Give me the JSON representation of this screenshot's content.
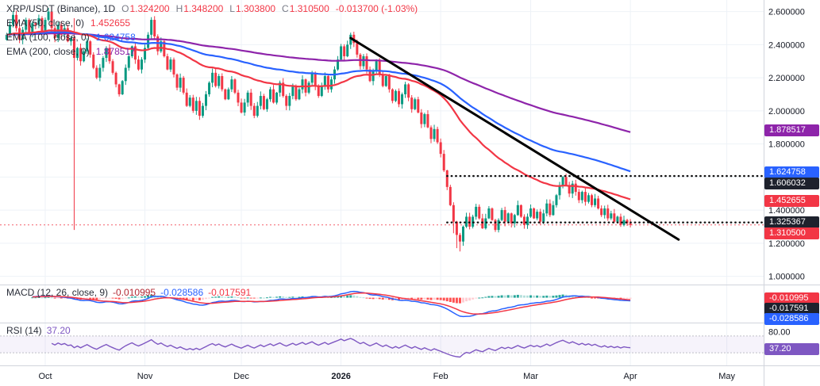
{
  "header": {
    "symbol": "XRP/USDT (Binance), 1D",
    "o_label": "O",
    "o_value": "1.324200",
    "h_label": "H",
    "h_value": "1.348200",
    "l_label": "L",
    "l_value": "1.303800",
    "c_label": "C",
    "c_value": "1.310500",
    "change": "-0.013700 (-1.03%)"
  },
  "ema_legend": [
    {
      "label": "EMA (50, close, 0)",
      "value": "1.452655"
    },
    {
      "label": "EMA (100, close, 0)",
      "value": "1.624758"
    },
    {
      "label": "EMA (200, close, 0)",
      "value": "1.878517"
    }
  ],
  "macd_legend": {
    "label": "MACD (12, 26, close, 9)",
    "hist_value": "-0.010995",
    "macd_value": "-0.028586",
    "signal_value": "-0.017591"
  },
  "rsi_legend": {
    "label": "RSI (14)",
    "value": "37.20"
  },
  "y_axis_ticks": [
    {
      "value": 2.6,
      "label": "2.600000"
    },
    {
      "value": 2.4,
      "label": "2.400000"
    },
    {
      "value": 2.2,
      "label": "2.200000"
    },
    {
      "value": 2.0,
      "label": "2.000000"
    },
    {
      "value": 1.8,
      "label": "1.800000"
    },
    {
      "value": 1.6,
      "label": "1.600000"
    },
    {
      "value": 1.4,
      "label": "1.400000"
    },
    {
      "value": 1.2,
      "label": "1.200000"
    },
    {
      "value": 1.0,
      "label": "1.000000"
    }
  ],
  "rsi_axis": {
    "upper_label": "80.00",
    "upper_value": 80
  },
  "price_badges": [
    {
      "label": "1.878517",
      "value": 1.878517,
      "color": "#8e24aa"
    },
    {
      "label": "1.624758",
      "value": 1.624758,
      "color": "#2962ff"
    },
    {
      "label": "1.606032",
      "value": 1.606032,
      "color": "#1e222d"
    },
    {
      "label": "1.452655",
      "value": 1.452655,
      "color": "#f23645"
    },
    {
      "label": "1.325367",
      "value": 1.325367,
      "color": "#1e222d"
    },
    {
      "label": "1.310500",
      "value": 1.3105,
      "color": "#f23645"
    }
  ],
  "macd_badges": [
    {
      "label": "-0.010995",
      "value": -0.010995,
      "color": "#f23645"
    },
    {
      "label": "-0.017591",
      "value": -0.017591,
      "color": "#1e222d"
    },
    {
      "label": "-0.028586",
      "value": -0.028586,
      "color": "#2962ff"
    }
  ],
  "rsi_badge": {
    "label": "37.20",
    "value": 37.2,
    "color": "#7e57c2"
  },
  "x_axis": {
    "labels": [
      {
        "text": "Oct",
        "i": 12
      },
      {
        "text": "Nov",
        "i": 43
      },
      {
        "text": "Dec",
        "i": 73
      },
      {
        "text": "2026",
        "i": 104,
        "bold": true
      },
      {
        "text": "Feb",
        "i": 135
      },
      {
        "text": "Mar",
        "i": 163
      },
      {
        "text": "Apr",
        "i": 194
      },
      {
        "text": "May",
        "i": 224
      }
    ]
  },
  "colors": {
    "background": "#ffffff",
    "candle_up": "#089981",
    "candle_down": "#f23645",
    "ema50": "#f23645",
    "ema100": "#2962ff",
    "ema200": "#8e24aa",
    "macd_line": "#2962ff",
    "macd_signal": "#f23645",
    "hist_up": "#26a69a",
    "hist_up_weak": "#b2dfdb",
    "hist_down": "#ff5252",
    "hist_down_weak": "#ffcdd2",
    "rsi_line": "#7e57c2",
    "trendline": "#000000",
    "grid": "#eef2f7",
    "axis_text": "#131722",
    "level": "#111111",
    "current_price": "#f23645"
  },
  "chart_data": {
    "type": "candlestick",
    "title": "XRP/USDT (Binance), 1D",
    "x_axis_labels": [
      "Oct",
      "Nov",
      "Dec",
      "2026",
      "Feb",
      "Mar",
      "Apr",
      "May"
    ],
    "ylim": [
      0.95,
      2.67
    ],
    "first_open": 2.43,
    "closes": [
      2.46,
      2.52,
      2.58,
      2.5,
      2.43,
      2.49,
      2.55,
      2.47,
      2.53,
      2.52,
      2.56,
      2.48,
      2.55,
      2.6,
      2.5,
      2.44,
      2.52,
      2.46,
      2.5,
      2.42,
      2.44,
      2.32,
      2.38,
      2.3,
      2.36,
      2.42,
      2.34,
      2.26,
      2.2,
      2.26,
      2.32,
      2.38,
      2.3,
      2.23,
      2.16,
      2.1,
      2.18,
      2.26,
      2.33,
      2.39,
      2.31,
      2.25,
      2.31,
      2.38,
      2.46,
      2.55,
      2.45,
      2.36,
      2.42,
      2.33,
      2.25,
      2.31,
      2.22,
      2.14,
      2.2,
      2.11,
      2.03,
      2.08,
      2.0,
      2.06,
      1.97,
      2.03,
      2.1,
      2.17,
      2.23,
      2.15,
      2.21,
      2.13,
      2.07,
      2.13,
      2.19,
      2.11,
      2.05,
      1.99,
      2.05,
      2.11,
      2.03,
      1.97,
      2.03,
      2.09,
      2.01,
      2.07,
      2.13,
      2.05,
      2.11,
      2.17,
      2.09,
      2.03,
      2.09,
      2.15,
      2.07,
      2.13,
      2.19,
      2.11,
      2.17,
      2.23,
      2.15,
      2.09,
      2.15,
      2.21,
      2.13,
      2.19,
      2.25,
      2.31,
      2.39,
      2.33,
      2.4,
      2.46,
      2.41,
      2.34,
      2.27,
      2.33,
      2.25,
      2.18,
      2.24,
      2.3,
      2.22,
      2.15,
      2.21,
      2.13,
      2.06,
      2.12,
      2.04,
      2.1,
      2.16,
      2.08,
      2.01,
      2.07,
      1.99,
      1.92,
      1.98,
      1.9,
      1.83,
      1.89,
      1.81,
      1.74,
      1.64,
      1.54,
      1.43,
      1.33,
      1.25,
      1.21,
      1.3,
      1.36,
      1.3,
      1.36,
      1.42,
      1.35,
      1.29,
      1.35,
      1.41,
      1.34,
      1.28,
      1.34,
      1.4,
      1.33,
      1.38,
      1.32,
      1.37,
      1.43,
      1.36,
      1.31,
      1.36,
      1.41,
      1.35,
      1.39,
      1.33,
      1.38,
      1.44,
      1.37,
      1.43,
      1.49,
      1.55,
      1.6,
      1.55,
      1.5,
      1.56,
      1.51,
      1.46,
      1.51,
      1.45,
      1.49,
      1.43,
      1.47,
      1.41,
      1.37,
      1.41,
      1.35,
      1.38,
      1.33,
      1.36,
      1.31,
      1.34,
      1.32,
      1.3105
    ],
    "wick_overrides": {
      "21": {
        "h": 2.56,
        "l": 1.28
      },
      "139": {
        "l": 1.26
      },
      "140": {
        "l": 1.17
      },
      "141": {
        "l": 1.15
      }
    },
    "overlays": [
      {
        "name": "EMA 50",
        "period": 50,
        "current": 1.452655
      },
      {
        "name": "EMA 100",
        "period": 100,
        "current": 1.624758
      },
      {
        "name": "EMA 200",
        "period": 200,
        "current": 1.878517
      }
    ],
    "oscillators": {
      "macd": {
        "fast": 12,
        "slow": 26,
        "signal": 9,
        "current": {
          "histogram": -0.010995,
          "macd": -0.028586,
          "signal": -0.017591
        }
      },
      "rsi": {
        "period": 14,
        "current": 37.2
      }
    },
    "levels": [
      {
        "price": 1.606032,
        "start_index": 137
      },
      {
        "price": 1.325367,
        "start_index": 137
      }
    ],
    "trendline": {
      "from_index": 107,
      "from_price": 2.44,
      "to_index": 209,
      "to_price": 1.222
    },
    "last_price": 1.3105
  }
}
